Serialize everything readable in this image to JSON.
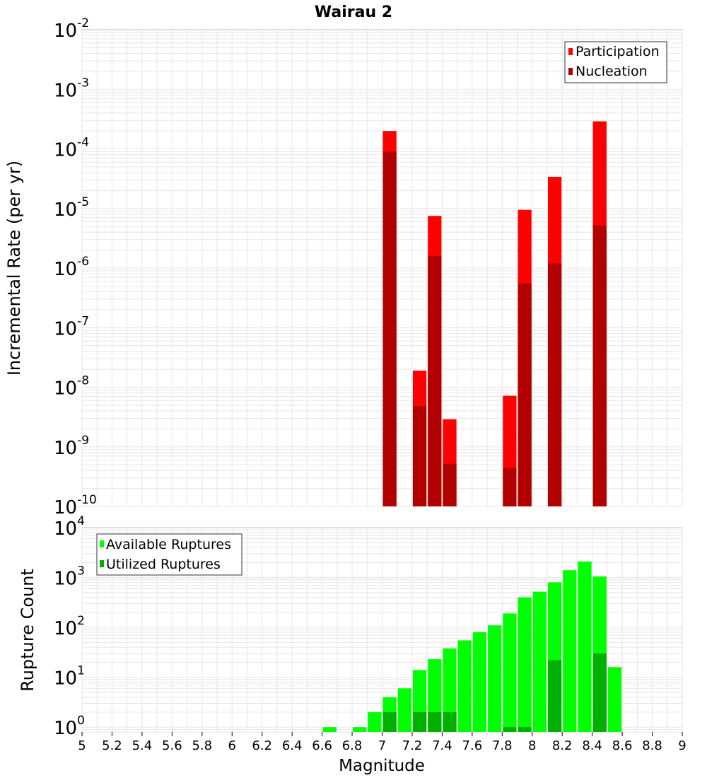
{
  "title": "Wairau 2",
  "colors": {
    "participation": "#ff0000",
    "nucleation": "#b20000",
    "available": "#00ff00",
    "utilized": "#00b000",
    "grid": "#e6e6e6",
    "frame": "#bdbdbd"
  },
  "chart_data": [
    {
      "type": "bar",
      "name": "rate",
      "xlabel": "Magnitude",
      "ylabel": "Incremental Rate (per yr)",
      "xlim": [
        5,
        9
      ],
      "ylim": [
        1e-10,
        0.01
      ],
      "yscale": "log",
      "grid": true,
      "legend_position": "top-right",
      "y_tick_exponents": [
        "-10",
        "-9",
        "-8",
        "-7",
        "-6",
        "-5",
        "-4",
        "-3",
        "-2"
      ],
      "series": [
        {
          "name": "Participation",
          "x": [
            7.05,
            7.25,
            7.35,
            7.45,
            7.85,
            7.95,
            8.15,
            8.45
          ],
          "values": [
            0.0002,
            1.9e-08,
            7.5e-06,
            2.9e-09,
            7.2e-09,
            9.5e-06,
            3.4e-05,
            0.00029
          ]
        },
        {
          "name": "Nucleation",
          "x": [
            7.05,
            7.25,
            7.35,
            7.45,
            7.85,
            7.95,
            8.15,
            8.45
          ],
          "values": [
            9e-05,
            4.8e-09,
            1.6e-06,
            5.2e-10,
            4.4e-10,
            5.5e-07,
            1.2e-06,
            5.2e-06
          ]
        }
      ]
    },
    {
      "type": "bar",
      "name": "count",
      "xlabel": "Magnitude",
      "ylabel": "Rupture Count",
      "xlim": [
        5,
        9
      ],
      "ylim": [
        0.8,
        10000
      ],
      "yscale": "log",
      "grid": true,
      "legend_position": "top-left",
      "x_ticks": [
        "5",
        "5.2",
        "5.4",
        "5.6",
        "5.8",
        "6",
        "6.2",
        "6.4",
        "6.6",
        "6.8",
        "7",
        "7.2",
        "7.4",
        "7.6",
        "7.8",
        "8",
        "8.2",
        "8.4",
        "8.6",
        "8.8",
        "9"
      ],
      "y_tick_exponents": [
        "0",
        "1",
        "2",
        "3",
        "4"
      ],
      "series": [
        {
          "name": "Available Ruptures",
          "x": [
            6.65,
            6.85,
            6.95,
            7.05,
            7.15,
            7.25,
            7.35,
            7.45,
            7.55,
            7.65,
            7.75,
            7.85,
            7.95,
            8.05,
            8.15,
            8.25,
            8.35,
            8.45,
            8.55
          ],
          "values": [
            1,
            1,
            2,
            4,
            6,
            14,
            23,
            38,
            55,
            80,
            110,
            190,
            400,
            520,
            800,
            1400,
            2100,
            1050,
            16
          ]
        },
        {
          "name": "Utilized Ruptures",
          "x": [
            7.05,
            7.25,
            7.35,
            7.45,
            7.85,
            7.95,
            8.15,
            8.45
          ],
          "values": [
            2,
            2,
            2,
            2,
            1,
            1,
            22,
            30
          ]
        }
      ]
    }
  ]
}
